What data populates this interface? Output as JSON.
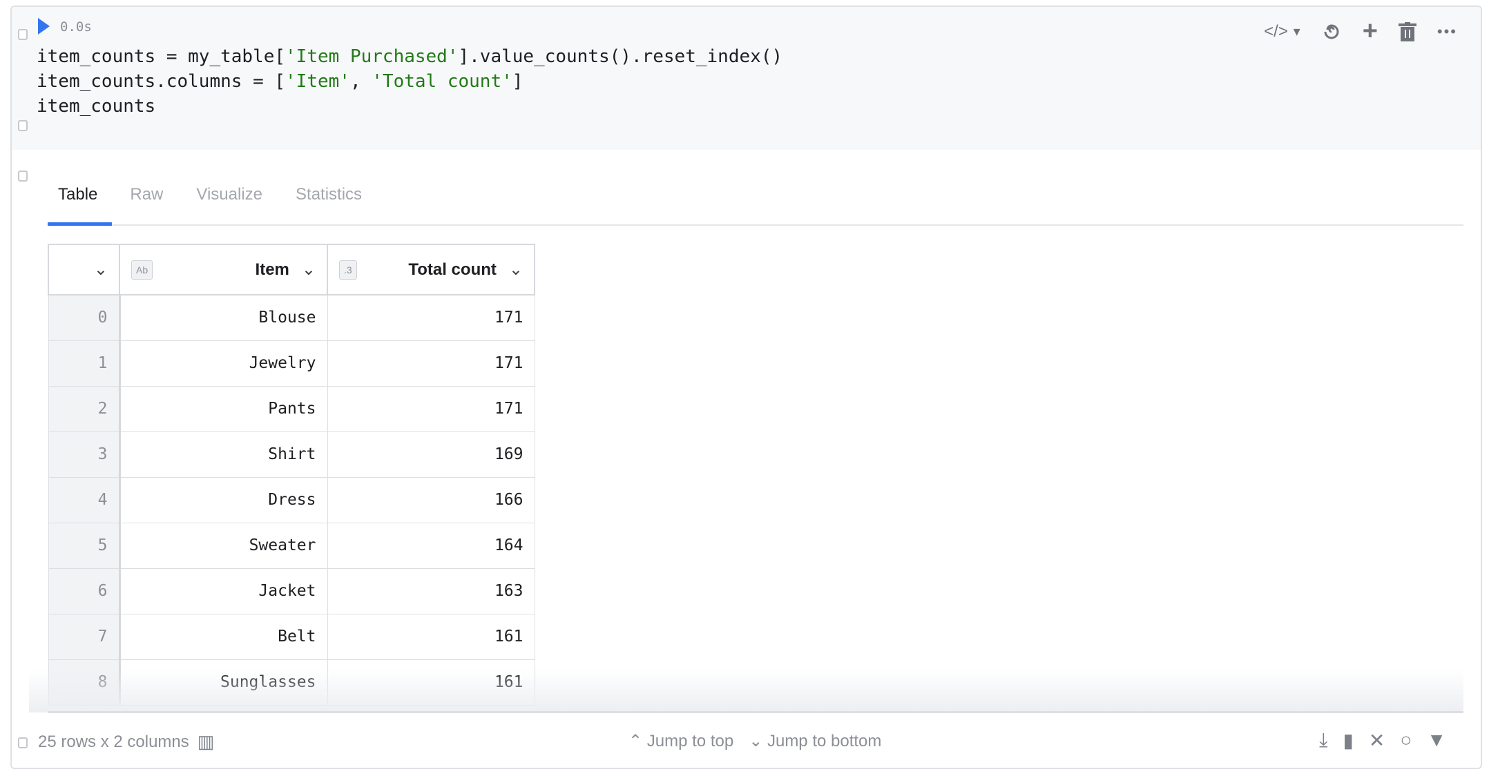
{
  "cell": {
    "exec_time": "0.0s",
    "code": [
      [
        {
          "t": "item_counts = my_table["
        },
        {
          "s": "'Item Purchased'"
        },
        {
          "t": "].value_counts().reset_index()"
        }
      ],
      [
        {
          "t": "item_counts.columns = ["
        },
        {
          "s": "'Item'"
        },
        {
          "t": ", "
        },
        {
          "s": "'Total count'"
        },
        {
          "t": "]"
        }
      ],
      [
        {
          "t": "item_counts"
        }
      ]
    ],
    "toolbar": {
      "code_icon": "</>",
      "dropdown_icon": "▾",
      "spiral_icon": "@",
      "add_icon": "+",
      "delete_icon": "trash",
      "more_icon": "•••"
    }
  },
  "tabs": [
    "Table",
    "Raw",
    "Visualize",
    "Statistics"
  ],
  "active_tab": "Table",
  "table": {
    "columns": [
      {
        "name": "Item",
        "type_badge": "Ab"
      },
      {
        "name": "Total count",
        "type_badge": ".3"
      }
    ],
    "rows": [
      [
        "0",
        "Blouse",
        "171"
      ],
      [
        "1",
        "Jewelry",
        "171"
      ],
      [
        "2",
        "Pants",
        "171"
      ],
      [
        "3",
        "Shirt",
        "169"
      ],
      [
        "4",
        "Dress",
        "166"
      ],
      [
        "5",
        "Sweater",
        "164"
      ],
      [
        "6",
        "Jacket",
        "163"
      ],
      [
        "7",
        "Belt",
        "161"
      ],
      [
        "8",
        "Sunglasses",
        "161"
      ]
    ]
  },
  "footer": {
    "summary": "25 rows x 2 columns",
    "jump_top": "Jump to top",
    "jump_bottom": "Jump to bottom"
  },
  "colors": {
    "accent": "#3574f0",
    "string": "#227a17"
  }
}
